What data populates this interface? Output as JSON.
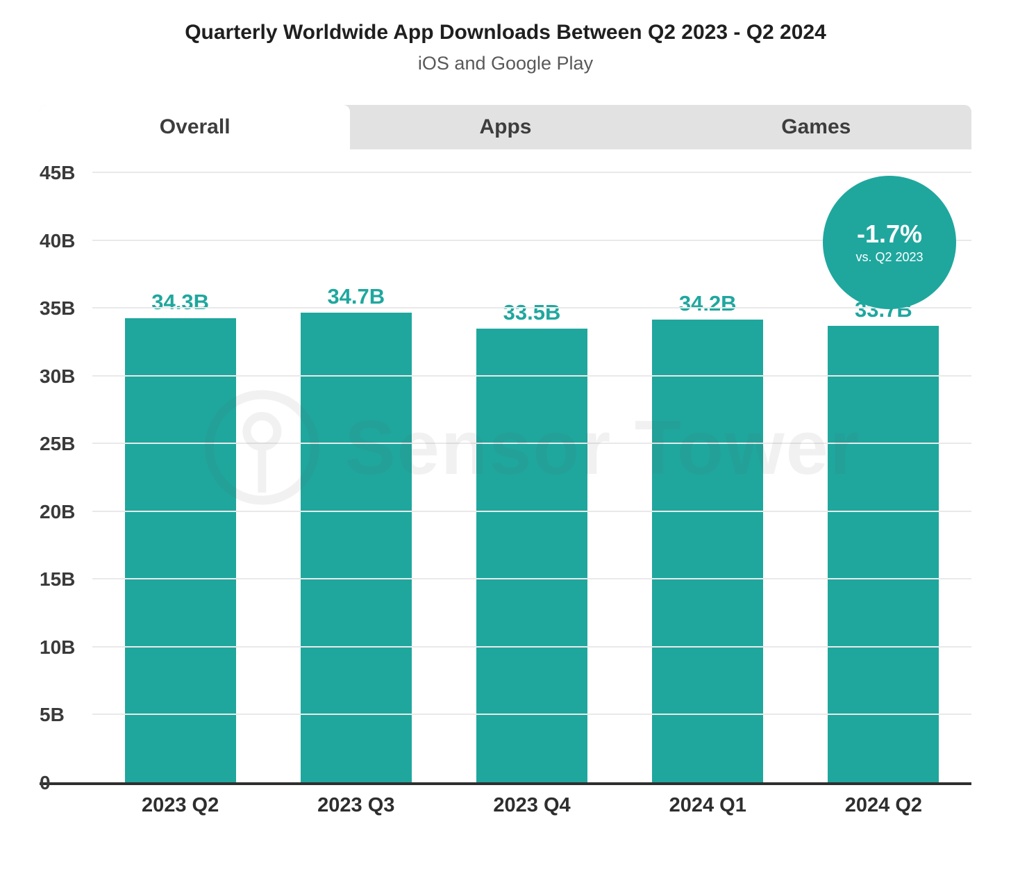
{
  "header": {
    "title": "Quarterly Worldwide App Downloads Between Q2 2023 - Q2 2024",
    "subtitle": "iOS and Google Play"
  },
  "tabs": [
    {
      "label": "Overall",
      "active": true
    },
    {
      "label": "Apps",
      "active": false
    },
    {
      "label": "Games",
      "active": false
    }
  ],
  "badge": {
    "value": "-1.7%",
    "caption": "vs. Q2 2023"
  },
  "watermark": "Sensor Tower",
  "colors": {
    "teal": "#1fa79e",
    "tab_bar_gray": "#e2e2e2",
    "gridline": "#e9e9e9"
  },
  "chart_data": {
    "type": "bar",
    "title": "Quarterly Worldwide App Downloads Between Q2 2023 - Q2 2024",
    "subtitle": "iOS and Google Play",
    "categories": [
      "2023 Q2",
      "2023 Q3",
      "2023 Q4",
      "2024 Q1",
      "2024 Q2"
    ],
    "values": [
      34.3,
      34.7,
      33.5,
      34.2,
      33.7
    ],
    "value_labels": [
      "34.3B",
      "34.7B",
      "33.5B",
      "34.2B",
      "33.7B"
    ],
    "xlabel": "",
    "ylabel": "",
    "ylim": [
      0,
      45
    ],
    "ytick_step": 5,
    "ytick_labels": [
      "0",
      "5B",
      "10B",
      "15B",
      "20B",
      "25B",
      "30B",
      "35B",
      "40B",
      "45B"
    ],
    "grid": true,
    "legend": false,
    "bar_color": "#1fa79e",
    "annotation": {
      "text": "-1.7%",
      "caption": "vs. Q2 2023"
    }
  }
}
